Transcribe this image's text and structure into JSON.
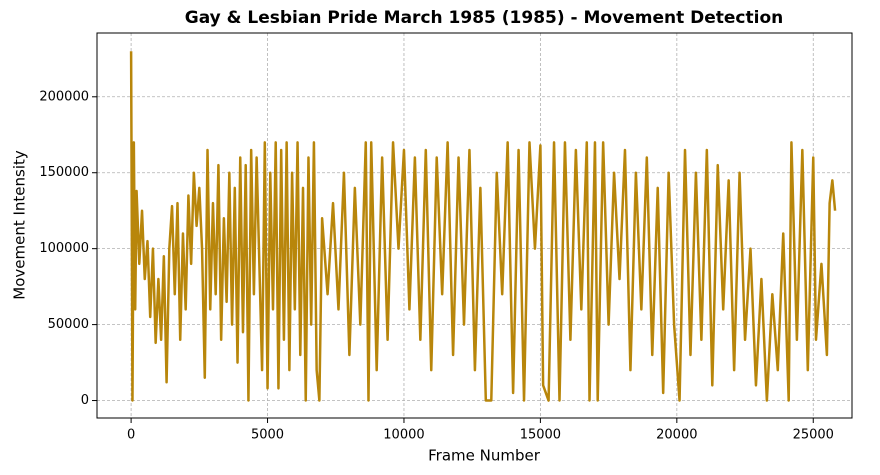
{
  "chart_data": {
    "type": "line",
    "title": "Gay & Lesbian Pride March 1985 (1985) - Movement Detection",
    "x_label": "Frame Number",
    "y_label": "Movement Intensity",
    "color": "#b8860b",
    "grid": true,
    "xlim": [
      -1250,
      26420
    ],
    "ylim": [
      -11500,
      242000
    ],
    "xticks": [
      0,
      5000,
      10000,
      15000,
      20000,
      25000
    ],
    "yticks": [
      0,
      50000,
      100000,
      150000,
      200000
    ],
    "x": [
      0,
      50,
      100,
      150,
      200,
      300,
      400,
      500,
      600,
      700,
      800,
      900,
      1000,
      1100,
      1200,
      1300,
      1400,
      1500,
      1600,
      1700,
      1800,
      1900,
      2000,
      2100,
      2200,
      2300,
      2400,
      2500,
      2600,
      2700,
      2800,
      2900,
      3000,
      3100,
      3200,
      3300,
      3400,
      3500,
      3600,
      3700,
      3800,
      3900,
      4000,
      4100,
      4200,
      4300,
      4400,
      4500,
      4600,
      4700,
      4800,
      4900,
      5000,
      5100,
      5200,
      5300,
      5400,
      5500,
      5600,
      5700,
      5800,
      5900,
      6000,
      6100,
      6200,
      6300,
      6400,
      6500,
      6600,
      6700,
      6800,
      6900,
      7000,
      7200,
      7400,
      7600,
      7800,
      8000,
      8200,
      8400,
      8600,
      8700,
      8800,
      9000,
      9200,
      9400,
      9600,
      9800,
      10000,
      10200,
      10400,
      10600,
      10800,
      11000,
      11200,
      11400,
      11600,
      11800,
      12000,
      12200,
      12400,
      12600,
      12800,
      13000,
      13200,
      13400,
      13600,
      13800,
      14000,
      14200,
      14400,
      14600,
      14800,
      15000,
      15100,
      15300,
      15500,
      15700,
      15900,
      16100,
      16300,
      16500,
      16700,
      16800,
      17000,
      17100,
      17300,
      17500,
      17700,
      17900,
      18100,
      18300,
      18500,
      18700,
      18900,
      19100,
      19300,
      19500,
      19700,
      19900,
      20100,
      20300,
      20500,
      20700,
      20900,
      21100,
      21300,
      21500,
      21700,
      21900,
      22100,
      22300,
      22500,
      22700,
      22900,
      23100,
      23300,
      23500,
      23700,
      23900,
      24100,
      24200,
      24400,
      24600,
      24800,
      25000,
      25100,
      25300,
      25500,
      25600,
      25700,
      25800
    ],
    "values": [
      230000,
      0,
      170000,
      60000,
      138000,
      90000,
      125000,
      80000,
      105000,
      55000,
      100000,
      38000,
      80000,
      40000,
      95000,
      12000,
      100000,
      128000,
      70000,
      130000,
      40000,
      110000,
      60000,
      135000,
      90000,
      150000,
      115000,
      140000,
      100000,
      15000,
      165000,
      60000,
      130000,
      70000,
      155000,
      40000,
      120000,
      65000,
      150000,
      50000,
      140000,
      25000,
      160000,
      45000,
      155000,
      0,
      165000,
      70000,
      160000,
      90000,
      20000,
      170000,
      8000,
      150000,
      60000,
      170000,
      8000,
      165000,
      40000,
      170000,
      20000,
      150000,
      60000,
      170000,
      30000,
      140000,
      0,
      160000,
      50000,
      170000,
      20000,
      0,
      120000,
      70000,
      130000,
      60000,
      150000,
      30000,
      140000,
      50000,
      170000,
      0,
      170000,
      20000,
      160000,
      40000,
      170000,
      100000,
      165000,
      60000,
      160000,
      40000,
      165000,
      20000,
      160000,
      70000,
      170000,
      30000,
      160000,
      50000,
      165000,
      20000,
      140000,
      0,
      0,
      150000,
      70000,
      170000,
      5000,
      165000,
      0,
      170000,
      100000,
      168000,
      10000,
      0,
      170000,
      0,
      170000,
      40000,
      165000,
      60000,
      170000,
      0,
      170000,
      0,
      170000,
      50000,
      150000,
      80000,
      165000,
      20000,
      150000,
      60000,
      160000,
      30000,
      140000,
      5000,
      150000,
      50000,
      0,
      165000,
      30000,
      150000,
      40000,
      165000,
      10000,
      155000,
      60000,
      145000,
      20000,
      150000,
      40000,
      100000,
      10000,
      80000,
      0,
      70000,
      20000,
      110000,
      0,
      170000,
      40000,
      165000,
      20000,
      160000,
      40000,
      90000,
      30000,
      130000,
      145000,
      125000
    ]
  }
}
